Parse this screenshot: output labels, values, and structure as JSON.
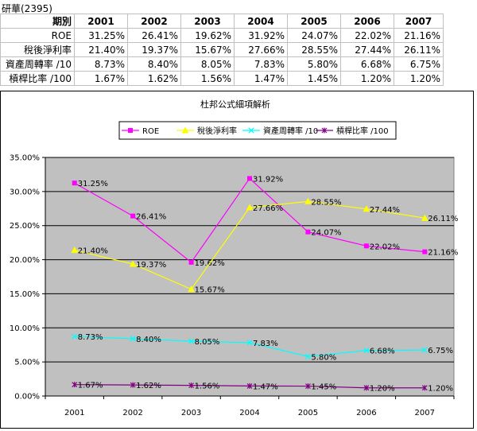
{
  "sheet": {
    "title": "研華(2395)",
    "header_label": "期別",
    "years": [
      "2001",
      "2002",
      "2003",
      "2004",
      "2005",
      "2006",
      "2007"
    ],
    "rows": [
      {
        "label": "ROE",
        "values": [
          "31.25%",
          "26.41%",
          "19.62%",
          "31.92%",
          "24.07%",
          "22.02%",
          "21.16%"
        ]
      },
      {
        "label": "稅後淨利率",
        "values": [
          "21.40%",
          "19.37%",
          "15.67%",
          "27.66%",
          "28.55%",
          "27.44%",
          "26.11%"
        ]
      },
      {
        "label": "資產周轉率 /10",
        "values": [
          "8.73%",
          "8.40%",
          "8.05%",
          "7.83%",
          "5.80%",
          "6.68%",
          "6.75%"
        ]
      },
      {
        "label": "槓桿比率 /100",
        "values": [
          "1.67%",
          "1.62%",
          "1.56%",
          "1.47%",
          "1.45%",
          "1.20%",
          "1.20%"
        ]
      }
    ]
  },
  "chart_data": {
    "type": "line",
    "title": "杜邦公式細項解析",
    "categories": [
      "2001",
      "2002",
      "2003",
      "2004",
      "2005",
      "2006",
      "2007"
    ],
    "ylim": [
      0,
      35
    ],
    "yticks": [
      "0.00%",
      "5.00%",
      "10.00%",
      "15.00%",
      "20.00%",
      "25.00%",
      "30.00%",
      "35.00%"
    ],
    "grid": true,
    "legend_position": "top",
    "plot_background": "#c0c0c0",
    "series": [
      {
        "name": "ROE",
        "color": "#ff00ff",
        "marker": "square",
        "values": [
          31.25,
          26.41,
          19.62,
          31.92,
          24.07,
          22.02,
          21.16
        ],
        "labels": [
          "31.25%",
          "26.41%",
          "19.62%",
          "31.92%",
          "24.07%",
          "22.02%",
          "21.16%"
        ]
      },
      {
        "name": "稅後淨利率",
        "color": "#ffff00",
        "marker": "triangle",
        "values": [
          21.4,
          19.37,
          15.67,
          27.66,
          28.55,
          27.44,
          26.11
        ],
        "labels": [
          "21.40%",
          "19.37%",
          "15.67%",
          "27.66%",
          "28.55%",
          "27.44%",
          "26.11%"
        ]
      },
      {
        "name": "資產周轉率 /10",
        "color": "#00ffff",
        "marker": "x",
        "values": [
          8.73,
          8.4,
          8.05,
          7.83,
          5.8,
          6.68,
          6.75
        ],
        "labels": [
          "8.73%",
          "8.40%",
          "8.05%",
          "7.83%",
          "5.80%",
          "6.68%",
          "6.75%"
        ]
      },
      {
        "name": "槓桿比率 /100",
        "color": "#800080",
        "marker": "star",
        "values": [
          1.67,
          1.62,
          1.56,
          1.47,
          1.45,
          1.2,
          1.2
        ],
        "labels": [
          "1.67%",
          "1.62%",
          "1.56%",
          "1.47%",
          "1.45%",
          "1.20%",
          "1.20%"
        ]
      }
    ]
  }
}
